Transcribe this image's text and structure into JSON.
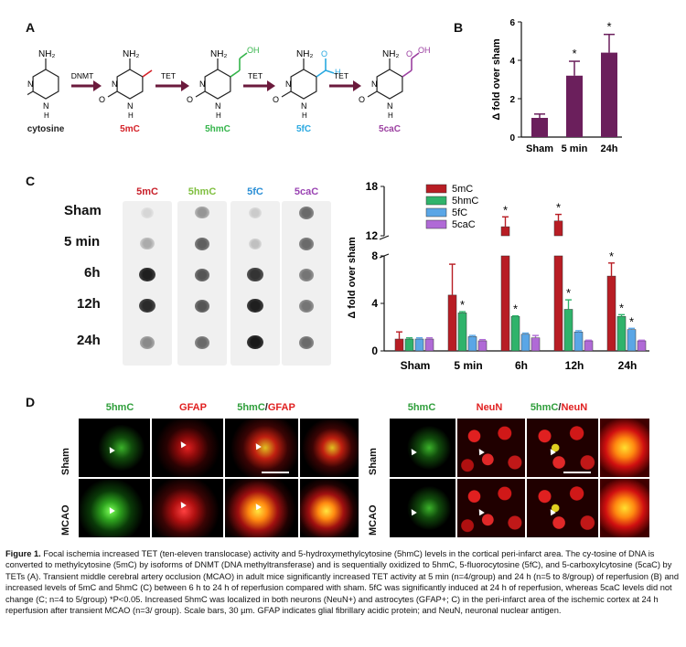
{
  "panels": {
    "A": "A",
    "B": "B",
    "C": "C",
    "D": "D"
  },
  "panel_a": {
    "molecules": [
      {
        "name": "cytosine",
        "color": "#222222",
        "top_group": "NH₂",
        "side_group": ""
      },
      {
        "name": "5mC",
        "color": "#d42027",
        "top_group": "NH₂",
        "side_group": ""
      },
      {
        "name": "5hmC",
        "color": "#34b44a",
        "top_group": "NH₂",
        "side_group": "OH"
      },
      {
        "name": "5fC",
        "color": "#29a8e0",
        "top_group": "NH₂",
        "side_group": "O"
      },
      {
        "name": "5caC",
        "color": "#9b3fa0",
        "top_group": "NH₂",
        "side_group": "OH"
      }
    ],
    "enzymes": [
      "DNMT",
      "TET",
      "TET",
      "TET"
    ],
    "ring_atoms": {
      "n_top": "N",
      "n_bottom": "N",
      "o": "O",
      "h": "H",
      "h_ald": "H"
    },
    "arrow_color": "#6b1a3c"
  },
  "chart_data": [
    {
      "type": "bar",
      "panel": "B",
      "categories": [
        "Sham",
        "5 min",
        "24h"
      ],
      "values": [
        1.0,
        3.2,
        4.4
      ],
      "errors": [
        0.2,
        0.75,
        0.95
      ],
      "significance": [
        "",
        "*",
        "*"
      ],
      "ylabel": "Δ fold over sham",
      "ylim": [
        0,
        6
      ],
      "yticks": [
        "0",
        "2",
        "4",
        "6"
      ],
      "bar_color": "#6b1f5c"
    },
    {
      "type": "bar",
      "panel": "C",
      "categories": [
        "Sham",
        "5 min",
        "6h",
        "12h",
        "24h"
      ],
      "series": [
        {
          "name": "5mC",
          "color": "#b81d24",
          "values": [
            1.0,
            4.7,
            13.1,
            13.8,
            6.3
          ],
          "errors": [
            0.6,
            2.6,
            1.2,
            0.8,
            1.1
          ],
          "sig": [
            "",
            "",
            "*",
            "*",
            "*"
          ]
        },
        {
          "name": "5hmC",
          "color": "#2fb36b",
          "values": [
            1.0,
            3.2,
            2.9,
            3.5,
            2.9
          ],
          "errors": [
            0.1,
            0.1,
            0.05,
            0.8,
            0.15
          ],
          "sig": [
            "",
            "*",
            "*",
            "*",
            "*"
          ]
        },
        {
          "name": "5fC",
          "color": "#5aa6e6",
          "values": [
            1.0,
            1.2,
            1.4,
            1.6,
            1.8
          ],
          "errors": [
            0.1,
            0.1,
            0.1,
            0.1,
            0.1
          ],
          "sig": [
            "",
            "",
            "",
            "",
            "*"
          ]
        },
        {
          "name": "5caC",
          "color": "#b06ad6",
          "values": [
            1.0,
            0.85,
            1.1,
            0.85,
            0.85
          ],
          "errors": [
            0.1,
            0.1,
            0.2,
            0.05,
            0.05
          ],
          "sig": [
            "",
            "",
            "",
            "",
            ""
          ]
        }
      ],
      "ylabel": "Δ fold over sham",
      "ylim": [
        0,
        18
      ],
      "y_break": [
        8,
        12
      ],
      "yticks": [
        "0",
        "4",
        "8",
        "12",
        "18"
      ]
    }
  ],
  "panel_c_blot": {
    "columns": [
      {
        "label": "5mC",
        "color": "#c8202a"
      },
      {
        "label": "5hmC",
        "color": "#7fbf3f"
      },
      {
        "label": "5fC",
        "color": "#2b8fd6"
      },
      {
        "label": "5caC",
        "color": "#9a44b3"
      }
    ],
    "rows": [
      "Sham",
      "5 min",
      "6h",
      "12h",
      "24h"
    ],
    "intensity": [
      [
        0.1,
        0.4,
        0.15,
        0.6
      ],
      [
        0.3,
        0.65,
        0.2,
        0.6
      ],
      [
        0.95,
        0.7,
        0.85,
        0.55
      ],
      [
        0.9,
        0.7,
        0.95,
        0.55
      ],
      [
        0.45,
        0.6,
        0.98,
        0.6
      ]
    ]
  },
  "panel_d": {
    "left_columns": [
      {
        "label": "5hmC",
        "color": "#2f9e3b"
      },
      {
        "label": "GFAP",
        "color": "#e02020"
      },
      {
        "label_a": "5hmC",
        "slash": "/",
        "label_b": "GFAP",
        "color_a": "#2f9e3b",
        "color_b": "#e02020"
      }
    ],
    "right_columns": [
      {
        "label": "5hmC",
        "color": "#2f9e3b"
      },
      {
        "label": "NeuN",
        "color": "#e02020"
      },
      {
        "label_a": "5hmC",
        "slash": "/",
        "label_b": "NeuN",
        "color_a": "#2f9e3b",
        "color_b": "#e02020"
      }
    ],
    "rows": [
      "Sham",
      "MCAO"
    ],
    "arrow_glyph": "▲"
  },
  "caption": {
    "label": "Figure 1.",
    "text": " Focal ischemia increased TET (ten-eleven translocase) activity and 5-hydroxymethylcytosine (5hmC) levels in the cortical peri-infarct area. The cy-tosine of DNA is converted to methylcytosine (5mC) by isoforms of DNMT (DNA methyltransferase) and is sequentially oxidized to 5hmC, 5-fluorocytosine (5fC), and 5-carboxylcytosine (5caC) by TETs (A). Transient middle cerebral artery occlusion (MCAO) in adult mice significantly increased TET activity at 5 min (n=4/group) and 24 h (n=5 to 8/group) of reperfusion (B) and increased levels of 5mC and 5hmC (C) between 6 h to 24 h of reperfusion compared with sham. 5fC was significantly induced at 24 h of reperfusion, whereas 5caC levels did not change (C; n=4 to 5/group) *P<0.05. Increased 5hmC was localized in both neurons (NeuN+) and astrocytes (GFAP+; C) in the peri-infarct area of the ischemic cortex at 24 h reperfusion after transient MCAO (n=3/ group). Scale bars, 30 µm. GFAP indicates glial fibrillary acidic protein; and NeuN, neuronal nuclear antigen."
  }
}
